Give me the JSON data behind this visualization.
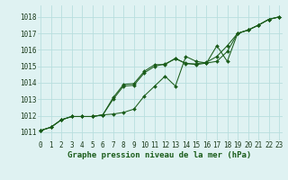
{
  "title": "Graphe pression niveau de la mer (hPa)",
  "bg_color": "#dff2f2",
  "grid_color": "#b8dede",
  "line_color": "#1a5c1a",
  "x_values": [
    0,
    1,
    2,
    3,
    4,
    5,
    6,
    7,
    8,
    9,
    10,
    11,
    12,
    13,
    14,
    15,
    16,
    17,
    18,
    19,
    20,
    21,
    22,
    23
  ],
  "line1": [
    1011.1,
    1011.3,
    1011.75,
    1011.95,
    1011.95,
    1011.95,
    1012.05,
    1012.1,
    1012.2,
    1012.4,
    1013.2,
    1013.8,
    1014.4,
    1013.8,
    1015.6,
    1015.3,
    1015.2,
    1016.25,
    1015.3,
    1017.0,
    1017.2,
    1017.5,
    1017.85,
    1018.0
  ],
  "line2": [
    1011.1,
    1011.3,
    1011.75,
    1011.95,
    1011.95,
    1011.95,
    1012.05,
    1013.0,
    1013.8,
    1013.85,
    1014.6,
    1015.0,
    1015.15,
    1015.45,
    1015.2,
    1015.1,
    1015.2,
    1015.3,
    1015.9,
    1017.0,
    1017.2,
    1017.5,
    1017.85,
    1018.0
  ],
  "line3": [
    1011.1,
    1011.3,
    1011.75,
    1011.95,
    1011.95,
    1011.95,
    1012.05,
    1013.1,
    1013.9,
    1013.95,
    1014.7,
    1015.1,
    1015.1,
    1015.5,
    1015.15,
    1015.15,
    1015.25,
    1015.6,
    1016.25,
    1017.0,
    1017.2,
    1017.5,
    1017.85,
    1018.0
  ],
  "ylim_min": 1010.5,
  "ylim_max": 1018.7,
  "yticks": [
    1011,
    1012,
    1013,
    1014,
    1015,
    1016,
    1017,
    1018
  ],
  "xlim_min": -0.3,
  "xlim_max": 23.3,
  "title_fontsize": 6.5,
  "tick_fontsize": 5.5,
  "label_color": "#1a5c1a",
  "tick_label_color": "#1a3a1a"
}
